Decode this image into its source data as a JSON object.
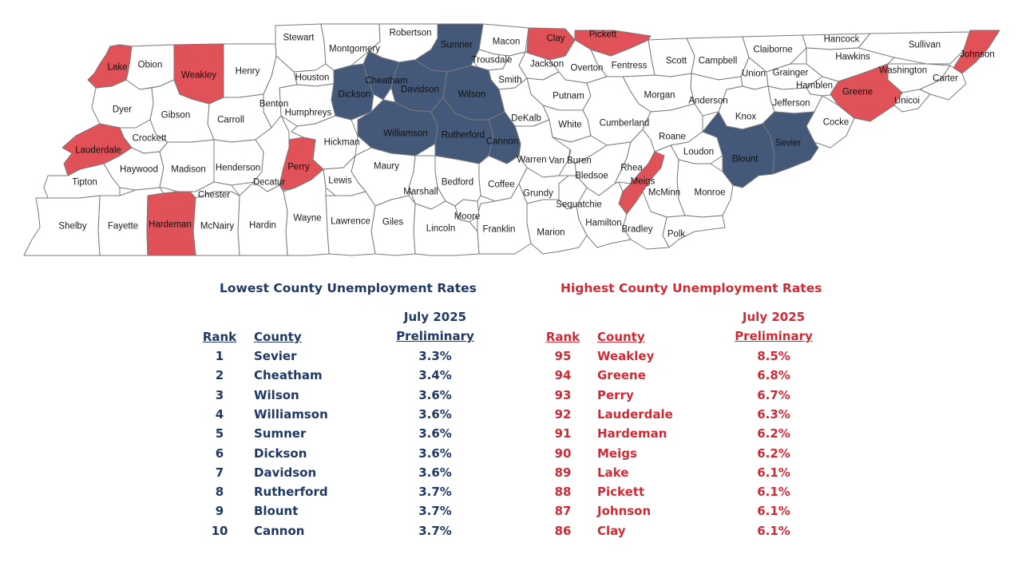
{
  "map": {
    "colors": {
      "lowest": "#44587a",
      "highest": "#e05257",
      "other": "#ffffff",
      "stroke": "#7a7a7a"
    },
    "counties": [
      {
        "name": "Lake",
        "group": "highest"
      },
      {
        "name": "Obion",
        "group": "other"
      },
      {
        "name": "Weakley",
        "group": "highest"
      },
      {
        "name": "Henry",
        "group": "other"
      },
      {
        "name": "Stewart",
        "group": "other"
      },
      {
        "name": "Montgomery",
        "group": "other"
      },
      {
        "name": "Robertson",
        "group": "other"
      },
      {
        "name": "Sumner",
        "group": "lowest"
      },
      {
        "name": "Macon",
        "group": "other"
      },
      {
        "name": "Clay",
        "group": "highest"
      },
      {
        "name": "Pickett",
        "group": "highest"
      },
      {
        "name": "Scott",
        "group": "other"
      },
      {
        "name": "Campbell",
        "group": "other"
      },
      {
        "name": "Claiborne",
        "group": "other"
      },
      {
        "name": "Hancock",
        "group": "other"
      },
      {
        "name": "Sullivan",
        "group": "other"
      },
      {
        "name": "Johnson",
        "group": "highest"
      },
      {
        "name": "Hawkins",
        "group": "other"
      },
      {
        "name": "Washington",
        "group": "other"
      },
      {
        "name": "Carter",
        "group": "other"
      },
      {
        "name": "Union",
        "group": "other"
      },
      {
        "name": "Grainger",
        "group": "other"
      },
      {
        "name": "Hamblen",
        "group": "other"
      },
      {
        "name": "Greene",
        "group": "highest"
      },
      {
        "name": "Unicoi",
        "group": "other"
      },
      {
        "name": "Jefferson",
        "group": "other"
      },
      {
        "name": "Cocke",
        "group": "other"
      },
      {
        "name": "Knox",
        "group": "other"
      },
      {
        "name": "Anderson",
        "group": "other"
      },
      {
        "name": "Morgan",
        "group": "other"
      },
      {
        "name": "Fentress",
        "group": "other"
      },
      {
        "name": "Overton",
        "group": "other"
      },
      {
        "name": "Jackson",
        "group": "other"
      },
      {
        "name": "Trousdale",
        "group": "other"
      },
      {
        "name": "Smith",
        "group": "other"
      },
      {
        "name": "Putnam",
        "group": "other"
      },
      {
        "name": "Cumberland",
        "group": "other"
      },
      {
        "name": "White",
        "group": "other"
      },
      {
        "name": "DeKalb",
        "group": "other"
      },
      {
        "name": "Wilson",
        "group": "lowest"
      },
      {
        "name": "Davidson",
        "group": "lowest"
      },
      {
        "name": "Cheatham",
        "group": "lowest"
      },
      {
        "name": "Dickson",
        "group": "lowest"
      },
      {
        "name": "Houston",
        "group": "other"
      },
      {
        "name": "Humphreys",
        "group": "other"
      },
      {
        "name": "Benton",
        "group": "other"
      },
      {
        "name": "Carroll",
        "group": "other"
      },
      {
        "name": "Gibson",
        "group": "other"
      },
      {
        "name": "Dyer",
        "group": "other"
      },
      {
        "name": "Crockett",
        "group": "other"
      },
      {
        "name": "Lauderdale",
        "group": "highest"
      },
      {
        "name": "Haywood",
        "group": "other"
      },
      {
        "name": "Madison",
        "group": "other"
      },
      {
        "name": "Henderson",
        "group": "other"
      },
      {
        "name": "Decatur",
        "group": "other"
      },
      {
        "name": "Perry",
        "group": "highest"
      },
      {
        "name": "Hickman",
        "group": "other"
      },
      {
        "name": "Williamson",
        "group": "lowest"
      },
      {
        "name": "Rutherford",
        "group": "lowest"
      },
      {
        "name": "Cannon",
        "group": "lowest"
      },
      {
        "name": "Warren",
        "group": "other"
      },
      {
        "name": "Van Buren",
        "group": "other"
      },
      {
        "name": "Bledsoe",
        "group": "other"
      },
      {
        "name": "Rhea",
        "group": "other"
      },
      {
        "name": "Roane",
        "group": "other"
      },
      {
        "name": "Loudon",
        "group": "other"
      },
      {
        "name": "Blount",
        "group": "lowest"
      },
      {
        "name": "Sevier",
        "group": "lowest"
      },
      {
        "name": "Monroe",
        "group": "other"
      },
      {
        "name": "McMinn",
        "group": "other"
      },
      {
        "name": "Meigs",
        "group": "highest"
      },
      {
        "name": "Polk",
        "group": "other"
      },
      {
        "name": "Bradley",
        "group": "other"
      },
      {
        "name": "Hamilton",
        "group": "other"
      },
      {
        "name": "Sequatchie",
        "group": "other"
      },
      {
        "name": "Marion",
        "group": "other"
      },
      {
        "name": "Grundy",
        "group": "other"
      },
      {
        "name": "Coffee",
        "group": "other"
      },
      {
        "name": "Franklin",
        "group": "other"
      },
      {
        "name": "Moore",
        "group": "other"
      },
      {
        "name": "Bedford",
        "group": "other"
      },
      {
        "name": "Marshall",
        "group": "other"
      },
      {
        "name": "Lincoln",
        "group": "other"
      },
      {
        "name": "Giles",
        "group": "other"
      },
      {
        "name": "Maury",
        "group": "other"
      },
      {
        "name": "Lewis",
        "group": "other"
      },
      {
        "name": "Lawrence",
        "group": "other"
      },
      {
        "name": "Wayne",
        "group": "other"
      },
      {
        "name": "Hardin",
        "group": "other"
      },
      {
        "name": "McNairy",
        "group": "other"
      },
      {
        "name": "Chester",
        "group": "other"
      },
      {
        "name": "Hardeman",
        "group": "highest"
      },
      {
        "name": "Fayette",
        "group": "other"
      },
      {
        "name": "Shelby",
        "group": "other"
      },
      {
        "name": "Tipton",
        "group": "other"
      }
    ]
  },
  "lowest": {
    "title": "Lowest County Unemployment Rates",
    "rank_header": "Rank",
    "county_header": "County",
    "period_header": "July 2025",
    "rate_header": "Preliminary",
    "rows": [
      {
        "rank": "1",
        "county": "Sevier",
        "rate": "3.3%"
      },
      {
        "rank": "2",
        "county": "Cheatham",
        "rate": "3.4%"
      },
      {
        "rank": "3",
        "county": "Wilson",
        "rate": "3.6%"
      },
      {
        "rank": "4",
        "county": "Williamson",
        "rate": "3.6%"
      },
      {
        "rank": "5",
        "county": "Sumner",
        "rate": "3.6%"
      },
      {
        "rank": "6",
        "county": "Dickson",
        "rate": "3.6%"
      },
      {
        "rank": "7",
        "county": "Davidson",
        "rate": "3.6%"
      },
      {
        "rank": "8",
        "county": "Rutherford",
        "rate": "3.7%"
      },
      {
        "rank": "9",
        "county": "Blount",
        "rate": "3.7%"
      },
      {
        "rank": "10",
        "county": "Cannon",
        "rate": "3.7%"
      }
    ]
  },
  "highest": {
    "title": "Highest County Unemployment Rates",
    "rank_header": "Rank",
    "county_header": "County",
    "period_header": "July 2025",
    "rate_header": "Preliminary",
    "rows": [
      {
        "rank": "95",
        "county": "Weakley",
        "rate": "8.5%"
      },
      {
        "rank": "94",
        "county": "Greene",
        "rate": "6.8%"
      },
      {
        "rank": "93",
        "county": "Perry",
        "rate": "6.7%"
      },
      {
        "rank": "92",
        "county": "Lauderdale",
        "rate": "6.3%"
      },
      {
        "rank": "91",
        "county": "Hardeman",
        "rate": "6.2%"
      },
      {
        "rank": "90",
        "county": "Meigs",
        "rate": "6.2%"
      },
      {
        "rank": "89",
        "county": "Lake",
        "rate": "6.1%"
      },
      {
        "rank": "88",
        "county": "Pickett",
        "rate": "6.1%"
      },
      {
        "rank": "87",
        "county": "Johnson",
        "rate": "6.1%"
      },
      {
        "rank": "86",
        "county": "Clay",
        "rate": "6.1%"
      }
    ]
  }
}
